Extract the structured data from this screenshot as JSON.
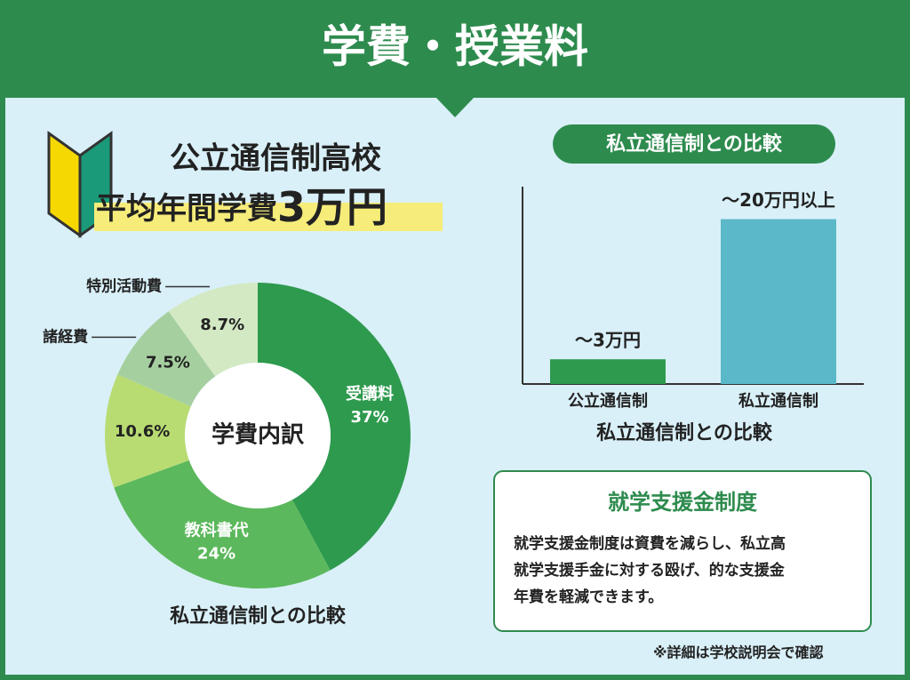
{
  "header": {
    "title": "学費・授業料"
  },
  "headline": {
    "line1": "公立通信制高校",
    "line2": "平均年間学費",
    "emphasis": "3万円"
  },
  "chart_data": [
    {
      "type": "donut",
      "center_label": "学費内訳",
      "caption": "私立通信制との比較",
      "categories": [
        "受講料",
        "教科書代",
        null,
        "諸経費",
        "特別活動費"
      ],
      "values": [
        37,
        24,
        10.6,
        7.5,
        8.7
      ],
      "value_labels": [
        "37%",
        "24%",
        "10.6%",
        "7.5%",
        "8.7%"
      ],
      "colors": [
        "#2e9a4e",
        "#5cb85c",
        "#b8dc72",
        "#a6cfa0",
        "#d3e9c4"
      ]
    },
    {
      "type": "bar",
      "title": "私立通信制との比較",
      "x_label": "私立通信制との比較",
      "categories": [
        "公立通信制",
        "私立通信制"
      ],
      "values": [
        3,
        20
      ],
      "value_labels": [
        "～3万円",
        "～20万円以上"
      ],
      "colors": [
        "#2e9a4e",
        "#5bb8c8"
      ],
      "ylim": [
        0,
        22
      ]
    }
  ],
  "info": {
    "title": "就学支援金制度",
    "lines": [
      "就学支援金制度は資費を減らし、私立高",
      "就学支援手金に対する殴げ、的な支援金",
      "年費を軽減できます。"
    ]
  },
  "footnote": "※詳細は学校説明会で確認"
}
